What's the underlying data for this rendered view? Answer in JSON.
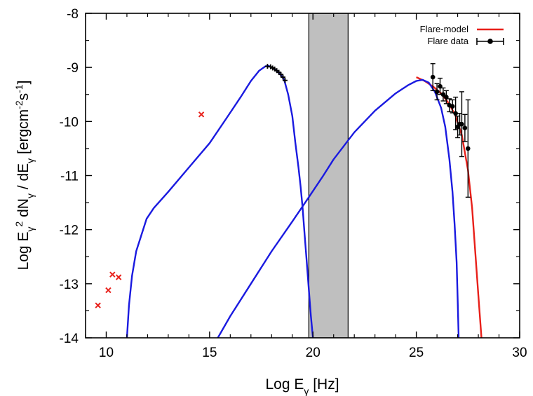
{
  "chart_data": {
    "type": "scatter",
    "xlabel": "Log Eγ [Hz]",
    "ylabel": "Log Eγ² dNγ / dEγ [ergcm⁻²s⁻¹]",
    "xlim": [
      9,
      30
    ],
    "ylim": [
      -14,
      -8
    ],
    "xticks": [
      10,
      15,
      20,
      25,
      30
    ],
    "yticks": [
      -8,
      -9,
      -10,
      -11,
      -12,
      -13,
      -14
    ],
    "legend_position": "top-right",
    "shaded_band": {
      "x": [
        19.8,
        21.7
      ],
      "color": "#bfbfbf"
    },
    "series": [
      {
        "name": "Flare-model",
        "kind": "line",
        "color": "#e8201a",
        "x": [
          25.0,
          25.4,
          25.8,
          26.2,
          26.6,
          26.9,
          27.2,
          27.5,
          27.7,
          27.85,
          28.0,
          28.15
        ],
        "y": [
          -9.18,
          -9.25,
          -9.35,
          -9.48,
          -9.68,
          -9.9,
          -10.25,
          -10.9,
          -11.6,
          -12.4,
          -13.2,
          -14.0
        ]
      },
      {
        "name": "",
        "kind": "line",
        "color": "#1a1ae0",
        "x": [
          11.0,
          11.1,
          11.25,
          11.45,
          11.7,
          11.95,
          12.3,
          13.0,
          14.0,
          15.0,
          15.8,
          16.5,
          17.0,
          17.4,
          17.7,
          17.85,
          18.1,
          18.4,
          18.6,
          18.8,
          19.0,
          19.15,
          19.3,
          19.4,
          19.5,
          19.6,
          19.7,
          19.8,
          19.9,
          20.0
        ],
        "y": [
          -14.0,
          -13.4,
          -12.85,
          -12.4,
          -12.1,
          -11.8,
          -11.6,
          -11.3,
          -10.85,
          -10.4,
          -9.95,
          -9.55,
          -9.25,
          -9.06,
          -8.98,
          -8.97,
          -9.02,
          -9.12,
          -9.22,
          -9.5,
          -9.9,
          -10.4,
          -10.85,
          -11.2,
          -11.6,
          -12.1,
          -12.6,
          -13.1,
          -13.6,
          -14.0
        ]
      },
      {
        "name": "",
        "kind": "line",
        "color": "#1a1ae0",
        "x": [
          15.4,
          16.0,
          17.0,
          18.0,
          19.0,
          19.8,
          20.5,
          21.0,
          22.0,
          23.0,
          24.0,
          24.6,
          25.0,
          25.3,
          25.6,
          25.9,
          26.2,
          26.4,
          26.6,
          26.75,
          26.85,
          26.95,
          27.0,
          27.05
        ],
        "y": [
          -14.0,
          -13.6,
          -13.0,
          -12.4,
          -11.85,
          -11.4,
          -11.0,
          -10.7,
          -10.2,
          -9.8,
          -9.48,
          -9.33,
          -9.25,
          -9.23,
          -9.28,
          -9.45,
          -9.75,
          -10.1,
          -10.7,
          -11.3,
          -11.9,
          -12.6,
          -13.3,
          -14.0
        ]
      },
      {
        "name": "",
        "kind": "markers-x",
        "color": "#e8201a",
        "x": [
          9.6,
          10.1,
          10.3,
          10.6,
          14.6
        ],
        "y": [
          -13.4,
          -13.12,
          -12.83,
          -12.88,
          -9.87
        ]
      },
      {
        "name": "",
        "kind": "markers-plus",
        "color": "#000000",
        "x": [
          17.8,
          17.95,
          18.05,
          18.15,
          18.25,
          18.35,
          18.45,
          18.55,
          18.65
        ],
        "y": [
          -8.98,
          -8.99,
          -9.01,
          -9.03,
          -9.06,
          -9.09,
          -9.13,
          -9.18,
          -9.24
        ]
      },
      {
        "name": "Flare data",
        "kind": "points-errorbars",
        "color": "#000000",
        "x": [
          25.8,
          26.0,
          26.15,
          26.3,
          26.45,
          26.6,
          26.75,
          26.9,
          27.0,
          27.1,
          27.2,
          27.35,
          27.5
        ],
        "y": [
          -9.18,
          -9.45,
          -9.35,
          -9.5,
          -9.55,
          -9.7,
          -9.72,
          -9.85,
          -10.1,
          -10.05,
          -10.05,
          -10.12,
          -10.5
        ],
        "yerr": [
          0.25,
          0.15,
          0.15,
          0.12,
          0.12,
          0.12,
          0.12,
          0.3,
          0.2,
          0.2,
          0.6,
          0.25,
          0.9
        ]
      }
    ]
  }
}
